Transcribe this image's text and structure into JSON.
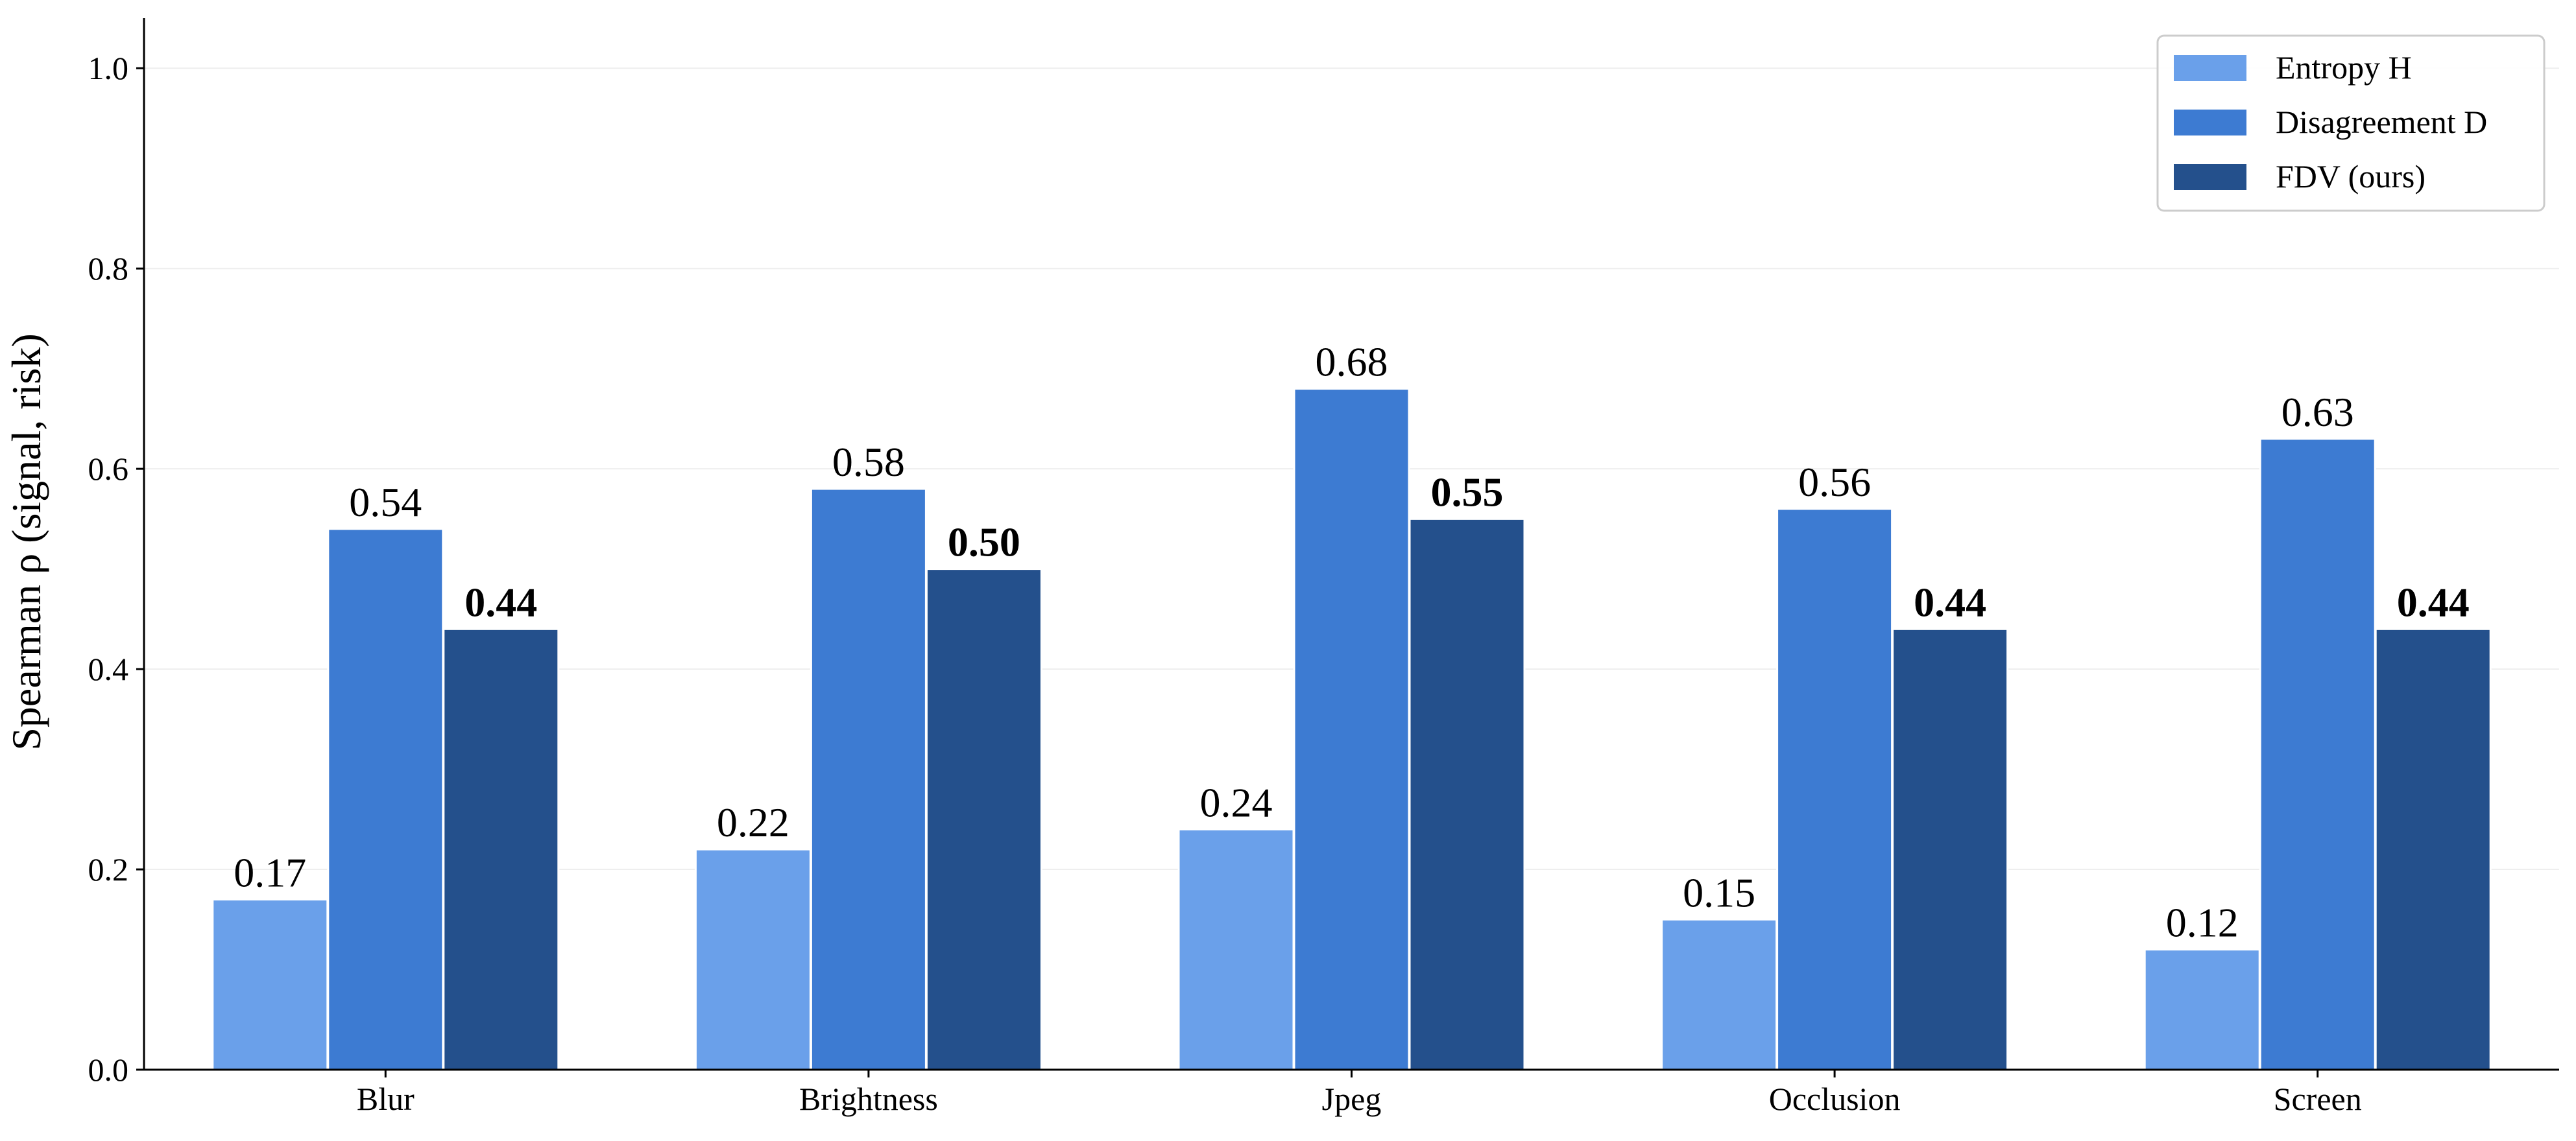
{
  "chart_data": {
    "type": "bar",
    "categories": [
      "Blur",
      "Brightness",
      "Jpeg",
      "Occlusion",
      "Screen"
    ],
    "series": [
      {
        "name": "Entropy H",
        "values": [
          0.17,
          0.22,
          0.24,
          0.15,
          0.12
        ],
        "labels": [
          "0.17",
          "0.22",
          "0.24",
          "0.15",
          "0.12"
        ],
        "color": "#6aa0ea",
        "bold_labels": false
      },
      {
        "name": "Disagreement D",
        "values": [
          0.54,
          0.58,
          0.68,
          0.56,
          0.63
        ],
        "labels": [
          "0.54",
          "0.58",
          "0.68",
          "0.56",
          "0.63"
        ],
        "color": "#3d7bd2",
        "bold_labels": false
      },
      {
        "name": "FDV (ours)",
        "values": [
          0.44,
          0.5,
          0.55,
          0.44,
          0.44
        ],
        "labels": [
          "0.44",
          "0.50",
          "0.55",
          "0.44",
          "0.44"
        ],
        "color": "#24508c",
        "bold_labels": true
      }
    ],
    "ylabel": "Spearman ρ (signal, risk)",
    "xlabel": "",
    "ylim": [
      0,
      1.05
    ],
    "yticks": [
      0.0,
      0.2,
      0.4,
      0.6,
      0.8,
      1.0
    ],
    "ytick_labels": [
      "0.0",
      "0.2",
      "0.4",
      "0.6",
      "0.8",
      "1.0"
    ],
    "grid": "horizontal",
    "legend_position": "top-right"
  }
}
